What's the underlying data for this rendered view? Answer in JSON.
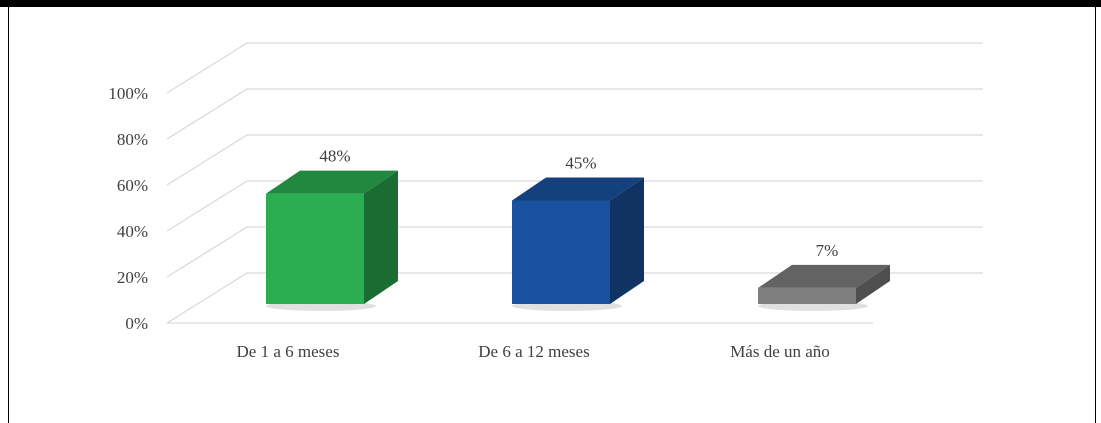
{
  "chart_data": {
    "type": "bar",
    "style": "3d-column",
    "categories": [
      "De 1 a 6 meses",
      "De 6 a 12 meses",
      "Más de un año"
    ],
    "values": [
      48,
      45,
      7
    ],
    "data_labels": [
      "48%",
      "45%",
      "7%"
    ],
    "colors": [
      "#2BAE52",
      "#1A52A0",
      "#7F7F7F"
    ],
    "ylim": [
      0,
      100
    ],
    "yticks": [
      0,
      20,
      40,
      60,
      80,
      100
    ],
    "ytick_labels": [
      "0%",
      "20%",
      "40%",
      "60%",
      "80%",
      "100%"
    ],
    "grid": true,
    "legend": "none",
    "title": "",
    "xlabel": "",
    "ylabel": ""
  }
}
